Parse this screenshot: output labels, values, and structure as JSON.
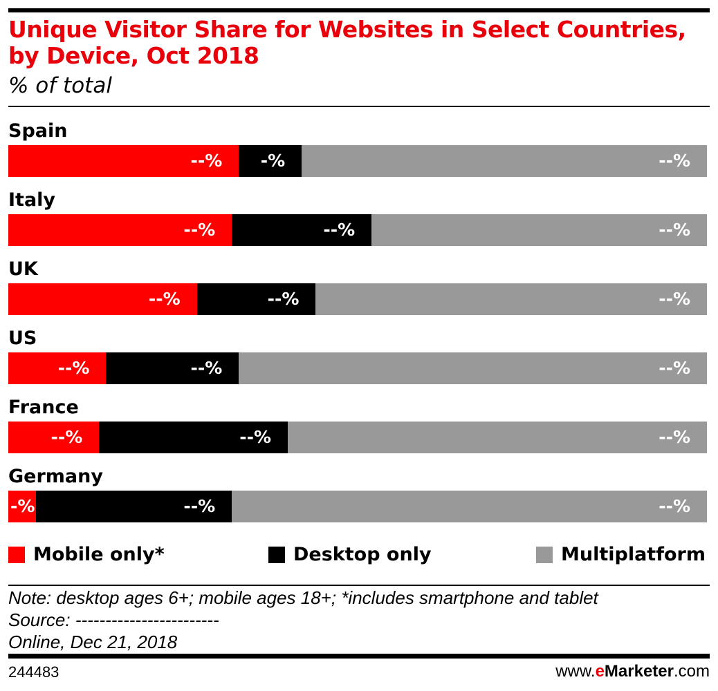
{
  "chart_data": {
    "type": "bar",
    "orientation": "horizontal",
    "stacked": "100%",
    "title": "Unique Visitor Share for Websites in Select Countries, by Device, Oct 2018",
    "subtitle": "% of total",
    "categories": [
      "Spain",
      "Italy",
      "UK",
      "US",
      "France",
      "Germany"
    ],
    "series": [
      {
        "name": "Mobile only*",
        "color": "#ff0000",
        "values": [
          33,
          32,
          27,
          14,
          13,
          4
        ],
        "labels": [
          "--%",
          "--%",
          "--%",
          "--%",
          "--%",
          "-%"
        ]
      },
      {
        "name": "Desktop only",
        "color": "#000000",
        "values": [
          9,
          20,
          17,
          19,
          27,
          28
        ],
        "labels": [
          "-%",
          "--%",
          "--%",
          "--%",
          "--%",
          "--%"
        ]
      },
      {
        "name": "Multiplatform",
        "color": "#999999",
        "values": [
          58,
          48,
          56,
          67,
          60,
          68
        ],
        "labels": [
          "--%",
          "--%",
          "--%",
          "--%",
          "--%",
          "--%"
        ]
      }
    ],
    "xlim": [
      0,
      100
    ],
    "grid": false,
    "legend_placement": "bottom"
  },
  "footer": {
    "note": "Note: desktop ages 6+; mobile ages 18+; *includes smartphone and tablet",
    "source": "Source: ------------------------",
    "source_line2": "Online, Dec 21, 2018",
    "chart_id": "244483",
    "brand_prefix": "www.",
    "brand_e": "e",
    "brand_name": "Marketer",
    "brand_suffix": ".com"
  }
}
